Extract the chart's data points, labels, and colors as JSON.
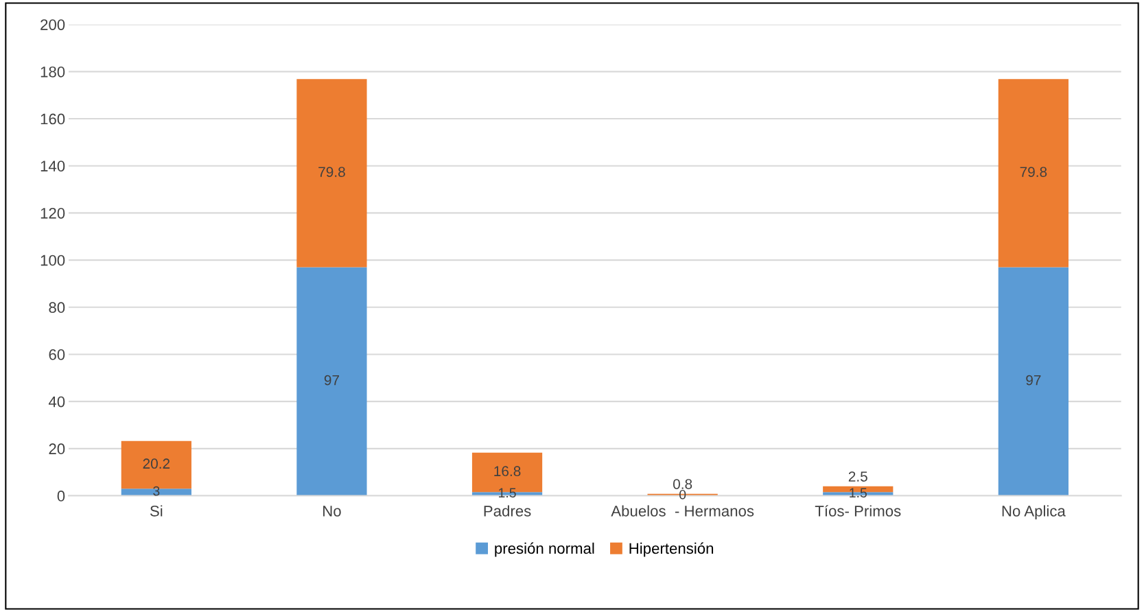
{
  "chart_data": {
    "type": "bar",
    "stacked": true,
    "categories": [
      "Si",
      "No",
      "Padres",
      "Abuelos  - Hermanos",
      "Tíos- Primos",
      "No Aplica"
    ],
    "series": [
      {
        "name": "presión normal",
        "color": "#5b9bd5",
        "values": [
          3,
          97,
          1.5,
          0,
          1.5,
          97
        ]
      },
      {
        "name": "Hipertensión",
        "color": "#ed7d31",
        "values": [
          20.2,
          79.8,
          16.8,
          0.8,
          2.5,
          79.8
        ]
      }
    ],
    "ylim": [
      0,
      200
    ],
    "yticks": [
      0,
      20,
      40,
      60,
      80,
      100,
      120,
      140,
      160,
      180,
      200
    ],
    "grid": "y",
    "legend": "bottom",
    "data_labels": true
  }
}
